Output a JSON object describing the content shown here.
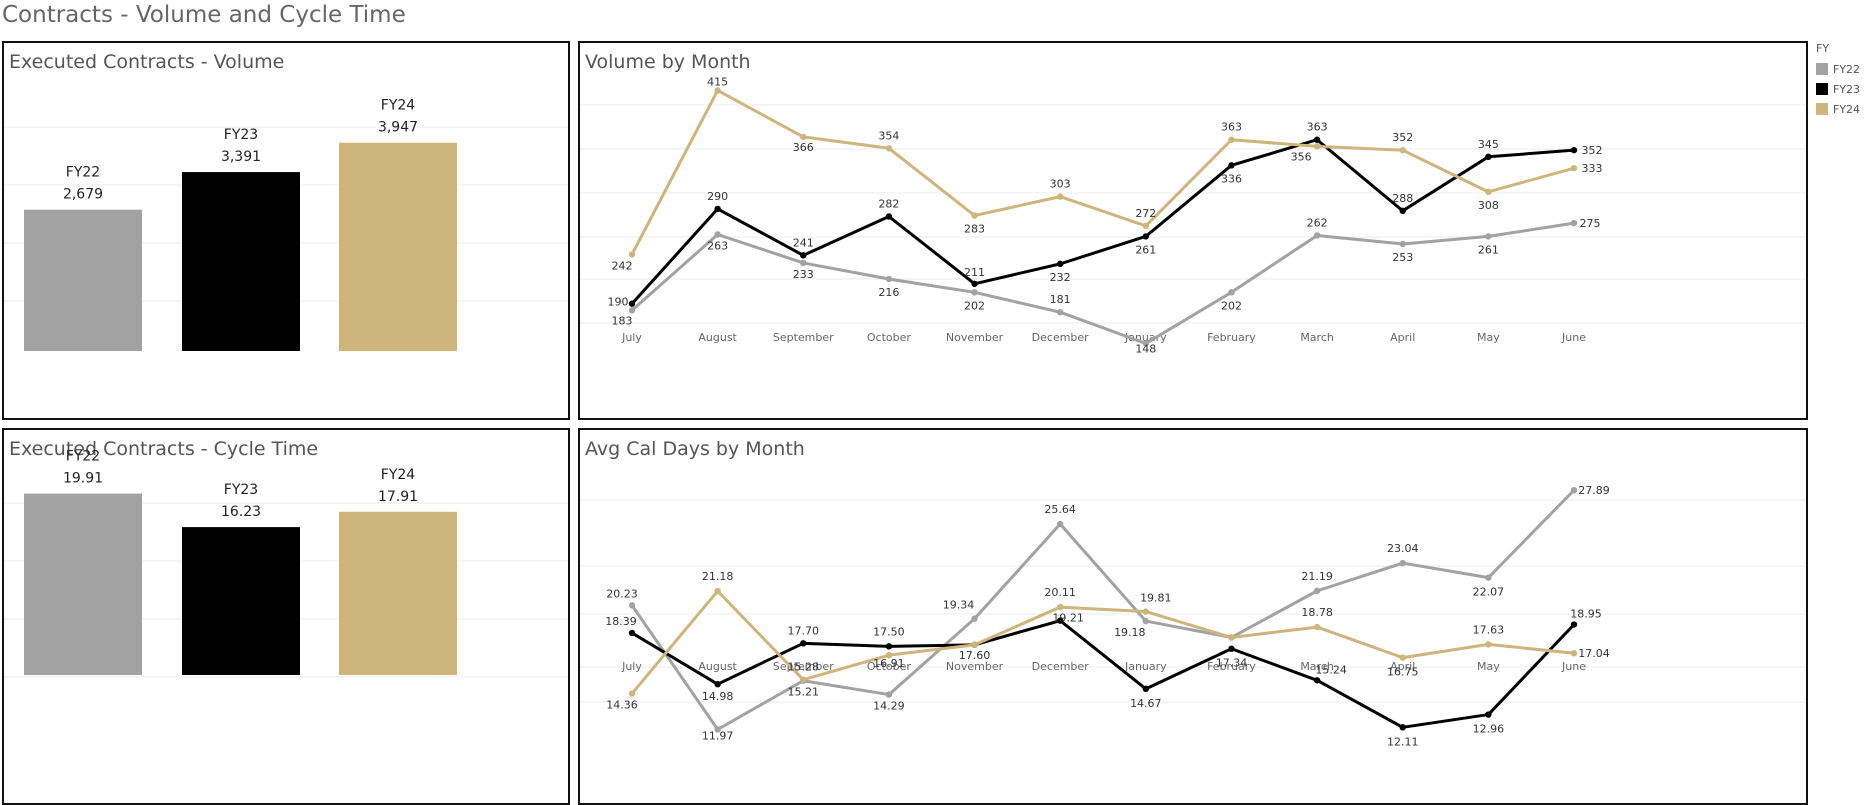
{
  "dashboard_title": "Contracts - Volume and Cycle Time",
  "colors": {
    "FY22": "#a2a2a2",
    "FY23": "#000000",
    "FY24": "#cdb57b"
  },
  "legend": {
    "title": "FY",
    "items": [
      "FY22",
      "FY23",
      "FY24"
    ]
  },
  "chart_data": [
    {
      "id": "volume_bar",
      "type": "bar",
      "title": "Executed Contracts - Volume",
      "categories": [
        "FY22",
        "FY23",
        "FY24"
      ],
      "values": [
        2679,
        3391,
        3947
      ],
      "value_labels": [
        "2,679",
        "3,391",
        "3,947"
      ],
      "ylim": [
        0,
        4700
      ],
      "grid": true
    },
    {
      "id": "volume_line",
      "type": "line",
      "title": "Volume by Month",
      "categories": [
        "July",
        "August",
        "September",
        "October",
        "November",
        "December",
        "January",
        "February",
        "March",
        "April",
        "May",
        "June"
      ],
      "ylim": [
        120,
        425
      ],
      "grid": true,
      "series": [
        {
          "name": "FY22",
          "values": [
            183,
            263,
            233,
            216,
            202,
            181,
            148,
            202,
            262,
            253,
            261,
            275
          ],
          "labels": [
            "183",
            "263",
            "233",
            "216",
            "202",
            "181",
            "148",
            "202",
            "262",
            "253",
            "261",
            "275"
          ]
        },
        {
          "name": "FY23",
          "values": [
            190,
            290,
            241,
            282,
            211,
            232,
            261,
            336,
            363,
            288,
            345,
            352
          ],
          "labels": [
            "190",
            "290",
            "241",
            "282",
            "211",
            "232",
            "261",
            "336",
            "363",
            "288",
            "345",
            "352"
          ]
        },
        {
          "name": "FY24",
          "values": [
            242,
            415,
            366,
            354,
            283,
            303,
            272,
            363,
            356,
            352,
            308,
            333
          ],
          "labels": [
            "242",
            "415",
            "366",
            "354",
            "283",
            "303",
            "272",
            "363",
            "356",
            "352",
            "308",
            "333"
          ]
        }
      ]
    },
    {
      "id": "cycle_bar",
      "type": "bar",
      "title": "Executed Contracts - Cycle Time",
      "categories": [
        "FY22",
        "FY23",
        "FY24"
      ],
      "values": [
        19.91,
        16.23,
        17.91
      ],
      "value_labels": [
        "19.91",
        "16.23",
        "17.91"
      ],
      "ylim": [
        0,
        20.3
      ],
      "grid": true
    },
    {
      "id": "cycle_line",
      "type": "line",
      "title": "Avg Cal Days by Month",
      "categories": [
        "July",
        "August",
        "September",
        "October",
        "November",
        "December",
        "January",
        "February",
        "March",
        "April",
        "May",
        "June"
      ],
      "ylim": [
        11.2,
        29.5
      ],
      "grid": true,
      "series": [
        {
          "name": "FY22",
          "values": [
            20.23,
            11.97,
            15.21,
            14.29,
            19.34,
            25.64,
            19.18,
            18.09,
            21.19,
            23.04,
            22.07,
            27.89
          ],
          "labels": [
            "20.23",
            "11.97",
            "15.21",
            "14.29",
            "19.34",
            "25.64",
            "19.18",
            "",
            "21.19",
            "23.04",
            "22.07",
            "27.89"
          ]
        },
        {
          "name": "FY23",
          "values": [
            18.39,
            14.98,
            17.7,
            17.5,
            17.6,
            19.21,
            14.67,
            17.34,
            15.24,
            12.11,
            12.96,
            18.95
          ],
          "labels": [
            "18.39",
            "14.98",
            "17.70",
            "17.50",
            "17.60",
            "19.21",
            "14.67",
            "17.34",
            "15.24",
            "12.11",
            "12.96",
            "18.95"
          ]
        },
        {
          "name": "FY24",
          "values": [
            14.36,
            21.18,
            15.28,
            16.91,
            17.6,
            20.11,
            19.81,
            18.09,
            18.78,
            16.75,
            17.63,
            17.04
          ],
          "labels": [
            "14.36",
            "21.18",
            "15.28",
            "16.91",
            "",
            "20.11",
            "19.81",
            "",
            "18.78",
            "16.75",
            "17.63",
            "17.04"
          ]
        }
      ]
    }
  ]
}
